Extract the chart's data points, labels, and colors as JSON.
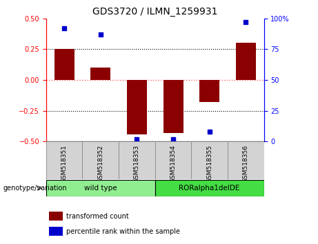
{
  "title": "GDS3720 / ILMN_1259931",
  "samples": [
    "GSM518351",
    "GSM518352",
    "GSM518353",
    "GSM518354",
    "GSM518355",
    "GSM518356"
  ],
  "bar_values": [
    0.25,
    0.1,
    -0.44,
    -0.43,
    -0.18,
    0.3
  ],
  "scatter_values": [
    92,
    87,
    2,
    2,
    8,
    97
  ],
  "ylim_left": [
    -0.5,
    0.5
  ],
  "ylim_right": [
    0,
    100
  ],
  "yticks_left": [
    -0.5,
    -0.25,
    0,
    0.25,
    0.5
  ],
  "yticks_right": [
    0,
    25,
    50,
    75,
    100
  ],
  "bar_color": "#8B0000",
  "scatter_color": "#0000CD",
  "zero_line_color": "#FF6666",
  "dotted_line_color": "black",
  "bg_color": "#FFFFFF",
  "genotype_groups": [
    {
      "label": "wild type",
      "start": 0,
      "end": 3,
      "color": "#90EE90"
    },
    {
      "label": "RORalpha1delDE",
      "start": 3,
      "end": 6,
      "color": "#44DD44"
    }
  ],
  "legend_items": [
    {
      "label": "transformed count",
      "color": "#8B0000"
    },
    {
      "label": "percentile rank within the sample",
      "color": "#0000CD"
    }
  ],
  "genotype_label": "genotype/variation",
  "title_fontsize": 10,
  "tick_fontsize": 7,
  "label_fontsize": 7,
  "legend_fontsize": 7,
  "sample_fontsize": 6.5,
  "geno_fontsize": 7.5
}
